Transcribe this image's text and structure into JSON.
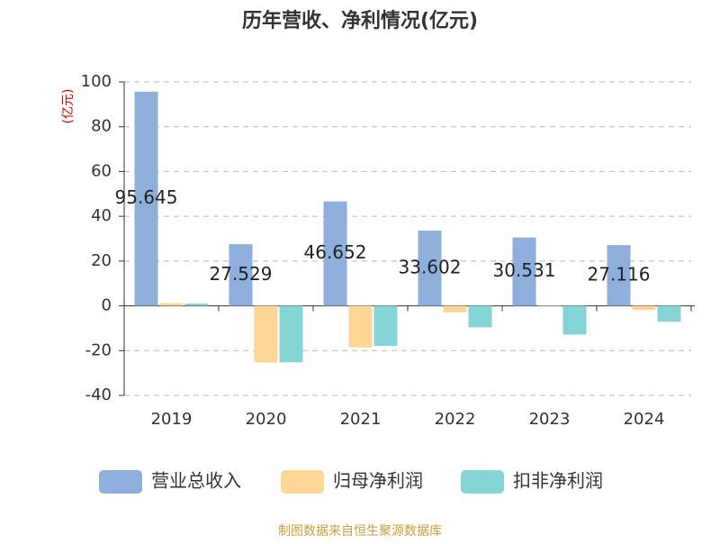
{
  "chart_data": {
    "type": "bar",
    "title": "历年营收、净利情况(亿元)",
    "y_label": "(亿元)",
    "source": "制图数据来自恒生聚源数据库",
    "categories": [
      "2019",
      "2020",
      "2021",
      "2022",
      "2023",
      "2024"
    ],
    "series": [
      {
        "name": "营业总收入",
        "color": "#8eaedb",
        "values": [
          95.645,
          27.529,
          46.652,
          33.602,
          30.531,
          27.116
        ]
      },
      {
        "name": "归母净利润",
        "color": "#fed696",
        "values": [
          1.2,
          -25.3,
          -18.5,
          -2.9,
          0.3,
          -1.8
        ]
      },
      {
        "name": "扣非净利润",
        "color": "#86d5d6",
        "values": [
          1.0,
          -25.2,
          -17.9,
          -9.6,
          -12.8,
          -7.1
        ]
      }
    ],
    "ylim": [
      -40,
      100
    ],
    "yticks": [
      -40,
      -20,
      0,
      20,
      40,
      60,
      80,
      100
    ],
    "grid": true
  }
}
